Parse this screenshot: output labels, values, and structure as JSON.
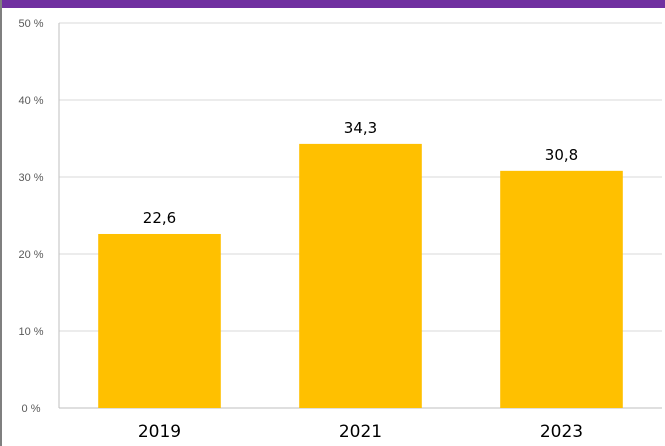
{
  "colors": {
    "top_bar": "#7030a0",
    "bar": "#ffc000",
    "grid": "#d9d9d9",
    "axis": "#bfbfbf"
  },
  "chart_data": {
    "type": "bar",
    "categories": [
      "2019",
      "2021",
      "2023"
    ],
    "values": [
      22.6,
      34.3,
      30.8
    ],
    "data_labels": [
      "22,6",
      "34,3",
      "30,8"
    ],
    "title": "",
    "xlabel": "",
    "ylabel": "",
    "ylim": [
      0,
      50
    ],
    "yticks": [
      0,
      10,
      20,
      30,
      40,
      50
    ],
    "ytick_labels": [
      "0 %",
      "10 %",
      "20 %",
      "30 %",
      "40 %",
      "50 %"
    ],
    "grid": true,
    "legend": "none"
  }
}
